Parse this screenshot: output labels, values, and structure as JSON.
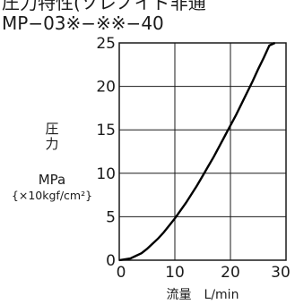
{
  "chart_data": {
    "type": "line",
    "title_top": "圧力特性(ソレノイド非通",
    "title": "MP−03※−※※−40",
    "ylabel_line1": "圧",
    "ylabel_line2": "力",
    "yunit": "MPa",
    "yunit_alt": "{×10kgf/cm²}",
    "xlabel": "流量　L/min",
    "xlim": [
      0,
      30
    ],
    "ylim": [
      0,
      25
    ],
    "x_ticks": [
      "0",
      "10",
      "20",
      "30"
    ],
    "y_ticks": [
      "0",
      "5",
      "10",
      "15",
      "20",
      "25"
    ],
    "grid": true,
    "series": [
      {
        "x": [
          0,
          1,
          2,
          3,
          4,
          5,
          6,
          7,
          8,
          9,
          10,
          11,
          12,
          13,
          14,
          15,
          16,
          17,
          18,
          19,
          20,
          21,
          22,
          23,
          24,
          25,
          26,
          27,
          28
        ],
        "y": [
          0.0,
          0.1,
          0.2,
          0.5,
          0.8,
          1.3,
          1.9,
          2.5,
          3.2,
          4.0,
          4.8,
          5.7,
          6.6,
          7.6,
          8.6,
          9.7,
          10.8,
          11.9,
          13.1,
          14.3,
          15.5,
          16.7,
          18.0,
          19.3,
          20.6,
          22.0,
          23.3,
          24.7,
          25.0
        ]
      }
    ]
  }
}
